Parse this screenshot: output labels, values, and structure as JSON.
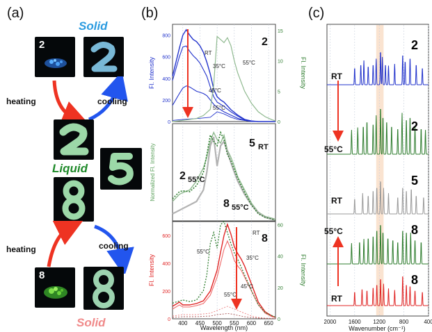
{
  "panel_labels": {
    "a": "(a)",
    "b": "(b)",
    "c": "(c)"
  },
  "panel_a": {
    "solid_top": "Solid",
    "liquid": "Liquid",
    "solid_bottom": "Solid",
    "photo_2_label": "2",
    "photo_8_label": "8",
    "heating_top": "heating",
    "cooling_top": "cooling",
    "heating_bottom": "heating",
    "cooling_bottom": "cooling"
  },
  "panel_b": {
    "top": {
      "compound": "2",
      "ylabel_left": "Fl. Intensity",
      "ylabel_right": "Fl. Intensity",
      "left_ticks": [
        "800",
        "600",
        "400",
        "200",
        "0"
      ],
      "right_ticks": [
        "15",
        "10",
        "5",
        "0"
      ],
      "labels": {
        "rt": "RT",
        "c35": "35°C",
        "c45": "45°C",
        "c55a": "55°C",
        "c55b": "55°C"
      }
    },
    "middle": {
      "ylabel": "Normalized Fl. Intensity",
      "lab_2": "2",
      "lab_2_sub": "55°C",
      "lab_5": "5",
      "lab_5_sub": "RT",
      "lab_8": "8",
      "lab_8_sub": "55°C"
    },
    "bottom": {
      "compound": "8",
      "ylabel_left": "Fl. Intensity",
      "ylabel_right": "Fl. Intensity",
      "left_ticks": [
        "600",
        "400",
        "200",
        "0"
      ],
      "right_ticks": [
        "60",
        "40",
        "20",
        "0"
      ],
      "labels": {
        "rt": "RT",
        "c35": "35°C",
        "c45": "45°C",
        "c55a": "55°C",
        "c55b": "55°C"
      }
    },
    "x_ticks": [
      "400",
      "450",
      "500",
      "550",
      "600",
      "650"
    ],
    "xlabel": "Wavelength (nm)"
  },
  "panel_c": {
    "row_labels": [
      "RT",
      "55°C",
      "RT",
      "55°C",
      "RT"
    ],
    "compound_labels": [
      "2",
      "2",
      "5",
      "8",
      "8"
    ],
    "x_ticks": [
      "2000",
      "1600",
      "1200",
      "800",
      "400"
    ],
    "xlabel": "Wavenumber (cm⁻¹)"
  },
  "colors": {
    "blue": "#2233cc",
    "green": "#2f7d2f",
    "light_green": "#8fb98f",
    "red": "#e02424",
    "gray": "#9a9a9a",
    "arrow_red": "#ee3322",
    "arrow_blue": "#2255ee",
    "highlight": "#f9dcc4"
  },
  "chart_data": [
    {
      "type": "line",
      "title": "",
      "compound": "2",
      "xlabel": "",
      "ylabel": "Fl. Intensity",
      "ylabel_right": "Fl. Intensity",
      "xlim": [
        370,
        670
      ],
      "ylim": [
        0,
        900
      ],
      "ylim_right": [
        0,
        16
      ],
      "series": [
        {
          "name": "RT",
          "axis": "left",
          "x": [
            370,
            390,
            400,
            410,
            420,
            430,
            440,
            450,
            460,
            470,
            480,
            490,
            500,
            510,
            520,
            540,
            560,
            580,
            600,
            620,
            640,
            660,
            670
          ],
          "y": [
            420,
            680,
            800,
            850,
            800,
            760,
            740,
            700,
            640,
            550,
            440,
            300,
            230,
            200,
            180,
            110,
            60,
            20,
            5,
            0,
            0,
            0,
            0
          ]
        },
        {
          "name": "35°C",
          "axis": "left",
          "x": [
            370,
            390,
            400,
            410,
            420,
            430,
            440,
            450,
            460,
            470,
            480,
            490,
            500,
            510,
            520,
            540,
            560,
            580,
            600,
            620,
            640,
            660,
            670
          ],
          "y": [
            380,
            600,
            690,
            700,
            650,
            610,
            580,
            540,
            480,
            420,
            320,
            230,
            180,
            160,
            140,
            90,
            50,
            15,
            5,
            0,
            0,
            0,
            0
          ]
        },
        {
          "name": "45°C",
          "axis": "left",
          "x": [
            370,
            390,
            400,
            410,
            420,
            430,
            440,
            450,
            460,
            470,
            480,
            490,
            500,
            510,
            520,
            540,
            560,
            580,
            600,
            620,
            640,
            660,
            670
          ],
          "y": [
            150,
            260,
            310,
            330,
            320,
            300,
            280,
            270,
            260,
            240,
            200,
            160,
            130,
            110,
            90,
            60,
            30,
            10,
            0,
            0,
            0,
            0,
            0
          ]
        },
        {
          "name": "55°C",
          "axis": "left",
          "x": [
            370,
            400,
            450,
            480,
            500,
            520,
            540,
            560,
            580,
            600,
            620,
            640,
            670
          ],
          "y": [
            10,
            20,
            30,
            40,
            90,
            70,
            40,
            20,
            10,
            5,
            0,
            0,
            0
          ]
        },
        {
          "name": "55°C",
          "axis": "right",
          "x": [
            370,
            400,
            440,
            460,
            480,
            490,
            500,
            510,
            520,
            530,
            540,
            550,
            560,
            580,
            600,
            620,
            640,
            660,
            670
          ],
          "y": [
            0,
            0.2,
            0.5,
            1,
            2,
            6,
            14,
            13.5,
            13,
            13.8,
            12.5,
            10,
            8,
            5,
            3,
            1.6,
            0.8,
            0.3,
            0.1
          ]
        }
      ]
    },
    {
      "type": "line",
      "title": "",
      "xlabel": "",
      "ylabel": "Normalized Fl. Intensity",
      "xlim": [
        370,
        670
      ],
      "ylim": [
        0,
        1.1
      ],
      "series": [
        {
          "name": "2 55°C",
          "x": [
            370,
            390,
            400,
            420,
            440,
            460,
            470,
            480,
            490,
            500,
            510,
            520,
            530,
            540,
            550,
            560,
            580,
            600,
            620,
            640,
            660,
            670
          ],
          "y": [
            0.22,
            0.3,
            0.32,
            0.35,
            0.45,
            0.6,
            0.72,
            0.9,
            1.0,
            0.92,
            0.88,
            0.97,
            0.8,
            0.72,
            0.62,
            0.5,
            0.35,
            0.2,
            0.1,
            0.05,
            0.03,
            0.02
          ]
        },
        {
          "name": "5 RT",
          "x": [
            370,
            400,
            420,
            440,
            460,
            470,
            480,
            490,
            500,
            510,
            520,
            530,
            540,
            550,
            560,
            580,
            600,
            620,
            640,
            660,
            670
          ],
          "y": [
            0.08,
            0.14,
            0.18,
            0.22,
            0.35,
            0.55,
            0.85,
            0.95,
            0.62,
            0.85,
            0.9,
            0.78,
            0.66,
            0.55,
            0.45,
            0.3,
            0.18,
            0.09,
            0.04,
            0.02,
            0.01
          ]
        },
        {
          "name": "8 55°C",
          "x": [
            370,
            390,
            400,
            420,
            440,
            460,
            470,
            480,
            490,
            500,
            510,
            520,
            530,
            540,
            550,
            560,
            580,
            600,
            620,
            640,
            660,
            670
          ],
          "y": [
            0.25,
            0.33,
            0.34,
            0.33,
            0.4,
            0.55,
            0.75,
            0.97,
            0.9,
            0.85,
            1.0,
            0.92,
            0.75,
            0.68,
            0.58,
            0.48,
            0.32,
            0.18,
            0.08,
            0.04,
            0.02,
            0.01
          ]
        }
      ]
    },
    {
      "type": "line",
      "title": "",
      "compound": "8",
      "xlabel": "Wavelength (nm)",
      "ylabel": "Fl. Intensity",
      "ylabel_right": "Fl. Intensity",
      "xlim": [
        370,
        670
      ],
      "ylim": [
        0,
        700
      ],
      "ylim_right": [
        0,
        62
      ],
      "series": [
        {
          "name": "RT",
          "axis": "left",
          "x": [
            370,
            390,
            400,
            420,
            440,
            460,
            480,
            500,
            510,
            520,
            530,
            540,
            550,
            560,
            570,
            580,
            600,
            620,
            640,
            660,
            670
          ],
          "y": [
            90,
            120,
            100,
            100,
            110,
            130,
            200,
            350,
            480,
            600,
            680,
            610,
            520,
            470,
            430,
            380,
            250,
            120,
            50,
            20,
            10
          ]
        },
        {
          "name": "35°C",
          "axis": "left",
          "x": [
            370,
            390,
            400,
            420,
            440,
            460,
            480,
            500,
            510,
            520,
            530,
            540,
            550,
            560,
            570,
            580,
            600,
            620,
            640,
            660,
            670
          ],
          "y": [
            70,
            100,
            85,
            85,
            95,
            110,
            170,
            300,
            400,
            500,
            560,
            500,
            420,
            380,
            350,
            300,
            200,
            100,
            40,
            15,
            8
          ]
        },
        {
          "name": "45°C",
          "axis": "left",
          "x": [
            370,
            400,
            440,
            480,
            500,
            520,
            530,
            540,
            560,
            580,
            600,
            620,
            640,
            670
          ],
          "y": [
            20,
            30,
            30,
            40,
            60,
            80,
            90,
            80,
            60,
            40,
            20,
            10,
            5,
            2
          ]
        },
        {
          "name": "55°C",
          "axis": "left",
          "x": [
            370,
            400,
            440,
            480,
            500,
            520,
            530,
            540,
            560,
            580,
            600,
            640,
            670
          ],
          "y": [
            10,
            15,
            15,
            20,
            30,
            35,
            38,
            35,
            25,
            15,
            8,
            3,
            1
          ]
        },
        {
          "name": "55°C",
          "axis": "right",
          "x": [
            370,
            400,
            420,
            440,
            460,
            470,
            480,
            490,
            500,
            510,
            520,
            530,
            540,
            550,
            560,
            580,
            600,
            620,
            640,
            660,
            670
          ],
          "y": [
            10,
            12,
            11,
            12,
            18,
            28,
            48,
            55,
            45,
            60,
            62,
            55,
            48,
            42,
            38,
            28,
            18,
            9,
            4,
            2,
            1
          ]
        }
      ]
    },
    {
      "type": "line",
      "title": "",
      "xlabel": "Wavenumber (cm⁻¹)",
      "ylabel": "",
      "xlim": [
        2050,
        400
      ],
      "series": [
        {
          "name": "2 RT",
          "peaks": [
            [
              1600,
              0.5
            ],
            [
              1500,
              0.6
            ],
            [
              1450,
              0.7
            ],
            [
              1380,
              0.55
            ],
            [
              1300,
              0.6
            ],
            [
              1250,
              0.75
            ],
            [
              1180,
              1.0
            ],
            [
              1150,
              0.8
            ],
            [
              1100,
              0.6
            ],
            [
              1050,
              0.55
            ],
            [
              950,
              0.6
            ],
            [
              820,
              0.9
            ],
            [
              780,
              0.7
            ],
            [
              700,
              0.8
            ],
            [
              600,
              0.6
            ],
            [
              500,
              0.5
            ]
          ]
        },
        {
          "name": "2 55°C",
          "peaks": [
            [
              1650,
              0.5
            ],
            [
              1550,
              0.55
            ],
            [
              1460,
              0.6
            ],
            [
              1400,
              0.7
            ],
            [
              1300,
              0.65
            ],
            [
              1250,
              0.8
            ],
            [
              1180,
              1.0
            ],
            [
              1140,
              0.8
            ],
            [
              1080,
              0.7
            ],
            [
              1000,
              0.6
            ],
            [
              900,
              0.55
            ],
            [
              830,
              0.85
            ],
            [
              760,
              0.75
            ],
            [
              700,
              0.8
            ],
            [
              620,
              0.6
            ],
            [
              520,
              0.55
            ],
            [
              450,
              0.5
            ]
          ]
        },
        {
          "name": "5 RT",
          "peaks": [
            [
              1600,
              0.45
            ],
            [
              1470,
              0.6
            ],
            [
              1380,
              0.55
            ],
            [
              1300,
              0.7
            ],
            [
              1240,
              0.8
            ],
            [
              1180,
              1.0
            ],
            [
              1130,
              0.75
            ],
            [
              1050,
              0.6
            ],
            [
              900,
              0.5
            ],
            [
              820,
              0.8
            ],
            [
              760,
              0.7
            ],
            [
              680,
              0.75
            ],
            [
              600,
              0.55
            ],
            [
              480,
              0.5
            ]
          ]
        },
        {
          "name": "8 55°C",
          "peaks": [
            [
              1650,
              0.5
            ],
            [
              1520,
              0.55
            ],
            [
              1450,
              0.6
            ],
            [
              1380,
              0.65
            ],
            [
              1300,
              0.7
            ],
            [
              1240,
              0.85
            ],
            [
              1180,
              1.0
            ],
            [
              1140,
              0.8
            ],
            [
              1060,
              0.65
            ],
            [
              980,
              0.6
            ],
            [
              900,
              0.55
            ],
            [
              820,
              0.85
            ],
            [
              760,
              0.8
            ],
            [
              690,
              0.75
            ],
            [
              620,
              0.6
            ],
            [
              520,
              0.55
            ]
          ]
        },
        {
          "name": "8 RT",
          "peaks": [
            [
              1600,
              0.45
            ],
            [
              1480,
              0.55
            ],
            [
              1400,
              0.5
            ],
            [
              1300,
              0.6
            ],
            [
              1240,
              0.7
            ],
            [
              1180,
              0.9
            ],
            [
              1130,
              0.7
            ],
            [
              1050,
              0.55
            ],
            [
              950,
              0.5
            ],
            [
              820,
              1.0
            ],
            [
              760,
              0.7
            ],
            [
              700,
              0.65
            ],
            [
              620,
              0.5
            ],
            [
              500,
              0.45
            ]
          ]
        }
      ]
    }
  ]
}
